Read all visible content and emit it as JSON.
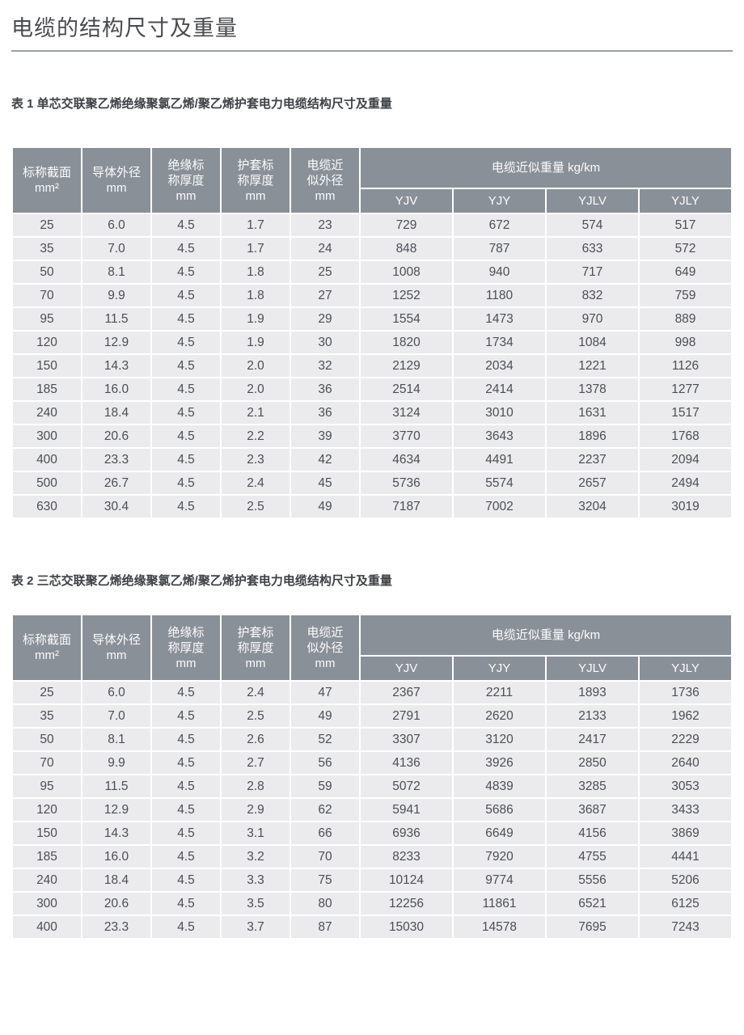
{
  "page": {
    "title": "电缆的结构尺寸及重量"
  },
  "colors": {
    "header_bg": "#8a9098",
    "row_bg": "#ebebed",
    "grid": "#ffffff",
    "body_text": "#4b4e54",
    "header_text": "#fcfcfc"
  },
  "tables": [
    {
      "caption": "表 1 单芯交联聚乙烯绝缘聚氯乙烯/聚乙烯护套电力电缆结构尺寸及重量",
      "columns": [
        "标称截面\nmm²",
        "导体外径\nmm",
        "绝缘标\n称厚度\nmm",
        "护套标\n称厚度\nmm",
        "电缆近\n似外径\nmm"
      ],
      "weight_group": "电缆近似重量 kg/km",
      "weight_types": [
        "YJV",
        "YJY",
        "YJLV",
        "YJLY"
      ],
      "rows": [
        [
          "25",
          "6.0",
          "4.5",
          "1.7",
          "23",
          "729",
          "672",
          "574",
          "517"
        ],
        [
          "35",
          "7.0",
          "4.5",
          "1.7",
          "24",
          "848",
          "787",
          "633",
          "572"
        ],
        [
          "50",
          "8.1",
          "4.5",
          "1.8",
          "25",
          "1008",
          "940",
          "717",
          "649"
        ],
        [
          "70",
          "9.9",
          "4.5",
          "1.8",
          "27",
          "1252",
          "1180",
          "832",
          "759"
        ],
        [
          "95",
          "11.5",
          "4.5",
          "1.9",
          "29",
          "1554",
          "1473",
          "970",
          "889"
        ],
        [
          "120",
          "12.9",
          "4.5",
          "1.9",
          "30",
          "1820",
          "1734",
          "1084",
          "998"
        ],
        [
          "150",
          "14.3",
          "4.5",
          "2.0",
          "32",
          "2129",
          "2034",
          "1221",
          "1126"
        ],
        [
          "185",
          "16.0",
          "4.5",
          "2.0",
          "36",
          "2514",
          "2414",
          "1378",
          "1277"
        ],
        [
          "240",
          "18.4",
          "4.5",
          "2.1",
          "36",
          "3124",
          "3010",
          "1631",
          "1517"
        ],
        [
          "300",
          "20.6",
          "4.5",
          "2.2",
          "39",
          "3770",
          "3643",
          "1896",
          "1768"
        ],
        [
          "400",
          "23.3",
          "4.5",
          "2.3",
          "42",
          "4634",
          "4491",
          "2237",
          "2094"
        ],
        [
          "500",
          "26.7",
          "4.5",
          "2.4",
          "45",
          "5736",
          "5574",
          "2657",
          "2494"
        ],
        [
          "630",
          "30.4",
          "4.5",
          "2.5",
          "49",
          "7187",
          "7002",
          "3204",
          "3019"
        ]
      ]
    },
    {
      "caption": "表 2 三芯交联聚乙烯绝缘聚氯乙烯/聚乙烯护套电力电缆结构尺寸及重量",
      "columns": [
        "标称截面\nmm²",
        "导体外径\nmm",
        "绝缘标\n称厚度\nmm",
        "护套标\n称厚度\nmm",
        "电缆近\n似外径\nmm"
      ],
      "weight_group": "电缆近似重量 kg/km",
      "weight_types": [
        "YJV",
        "YJY",
        "YJLV",
        "YJLY"
      ],
      "rows": [
        [
          "25",
          "6.0",
          "4.5",
          "2.4",
          "47",
          "2367",
          "2211",
          "1893",
          "1736"
        ],
        [
          "35",
          "7.0",
          "4.5",
          "2.5",
          "49",
          "2791",
          "2620",
          "2133",
          "1962"
        ],
        [
          "50",
          "8.1",
          "4.5",
          "2.6",
          "52",
          "3307",
          "3120",
          "2417",
          "2229"
        ],
        [
          "70",
          "9.9",
          "4.5",
          "2.7",
          "56",
          "4136",
          "3926",
          "2850",
          "2640"
        ],
        [
          "95",
          "11.5",
          "4.5",
          "2.8",
          "59",
          "5072",
          "4839",
          "3285",
          "3053"
        ],
        [
          "120",
          "12.9",
          "4.5",
          "2.9",
          "62",
          "5941",
          "5686",
          "3687",
          "3433"
        ],
        [
          "150",
          "14.3",
          "4.5",
          "3.1",
          "66",
          "6936",
          "6649",
          "4156",
          "3869"
        ],
        [
          "185",
          "16.0",
          "4.5",
          "3.2",
          "70",
          "8233",
          "7920",
          "4755",
          "4441"
        ],
        [
          "240",
          "18.4",
          "4.5",
          "3.3",
          "75",
          "10124",
          "9774",
          "5556",
          "5206"
        ],
        [
          "300",
          "20.6",
          "4.5",
          "3.5",
          "80",
          "12256",
          "11861",
          "6521",
          "6125"
        ],
        [
          "400",
          "23.3",
          "4.5",
          "3.7",
          "87",
          "15030",
          "14578",
          "7695",
          "7243"
        ]
      ]
    }
  ]
}
